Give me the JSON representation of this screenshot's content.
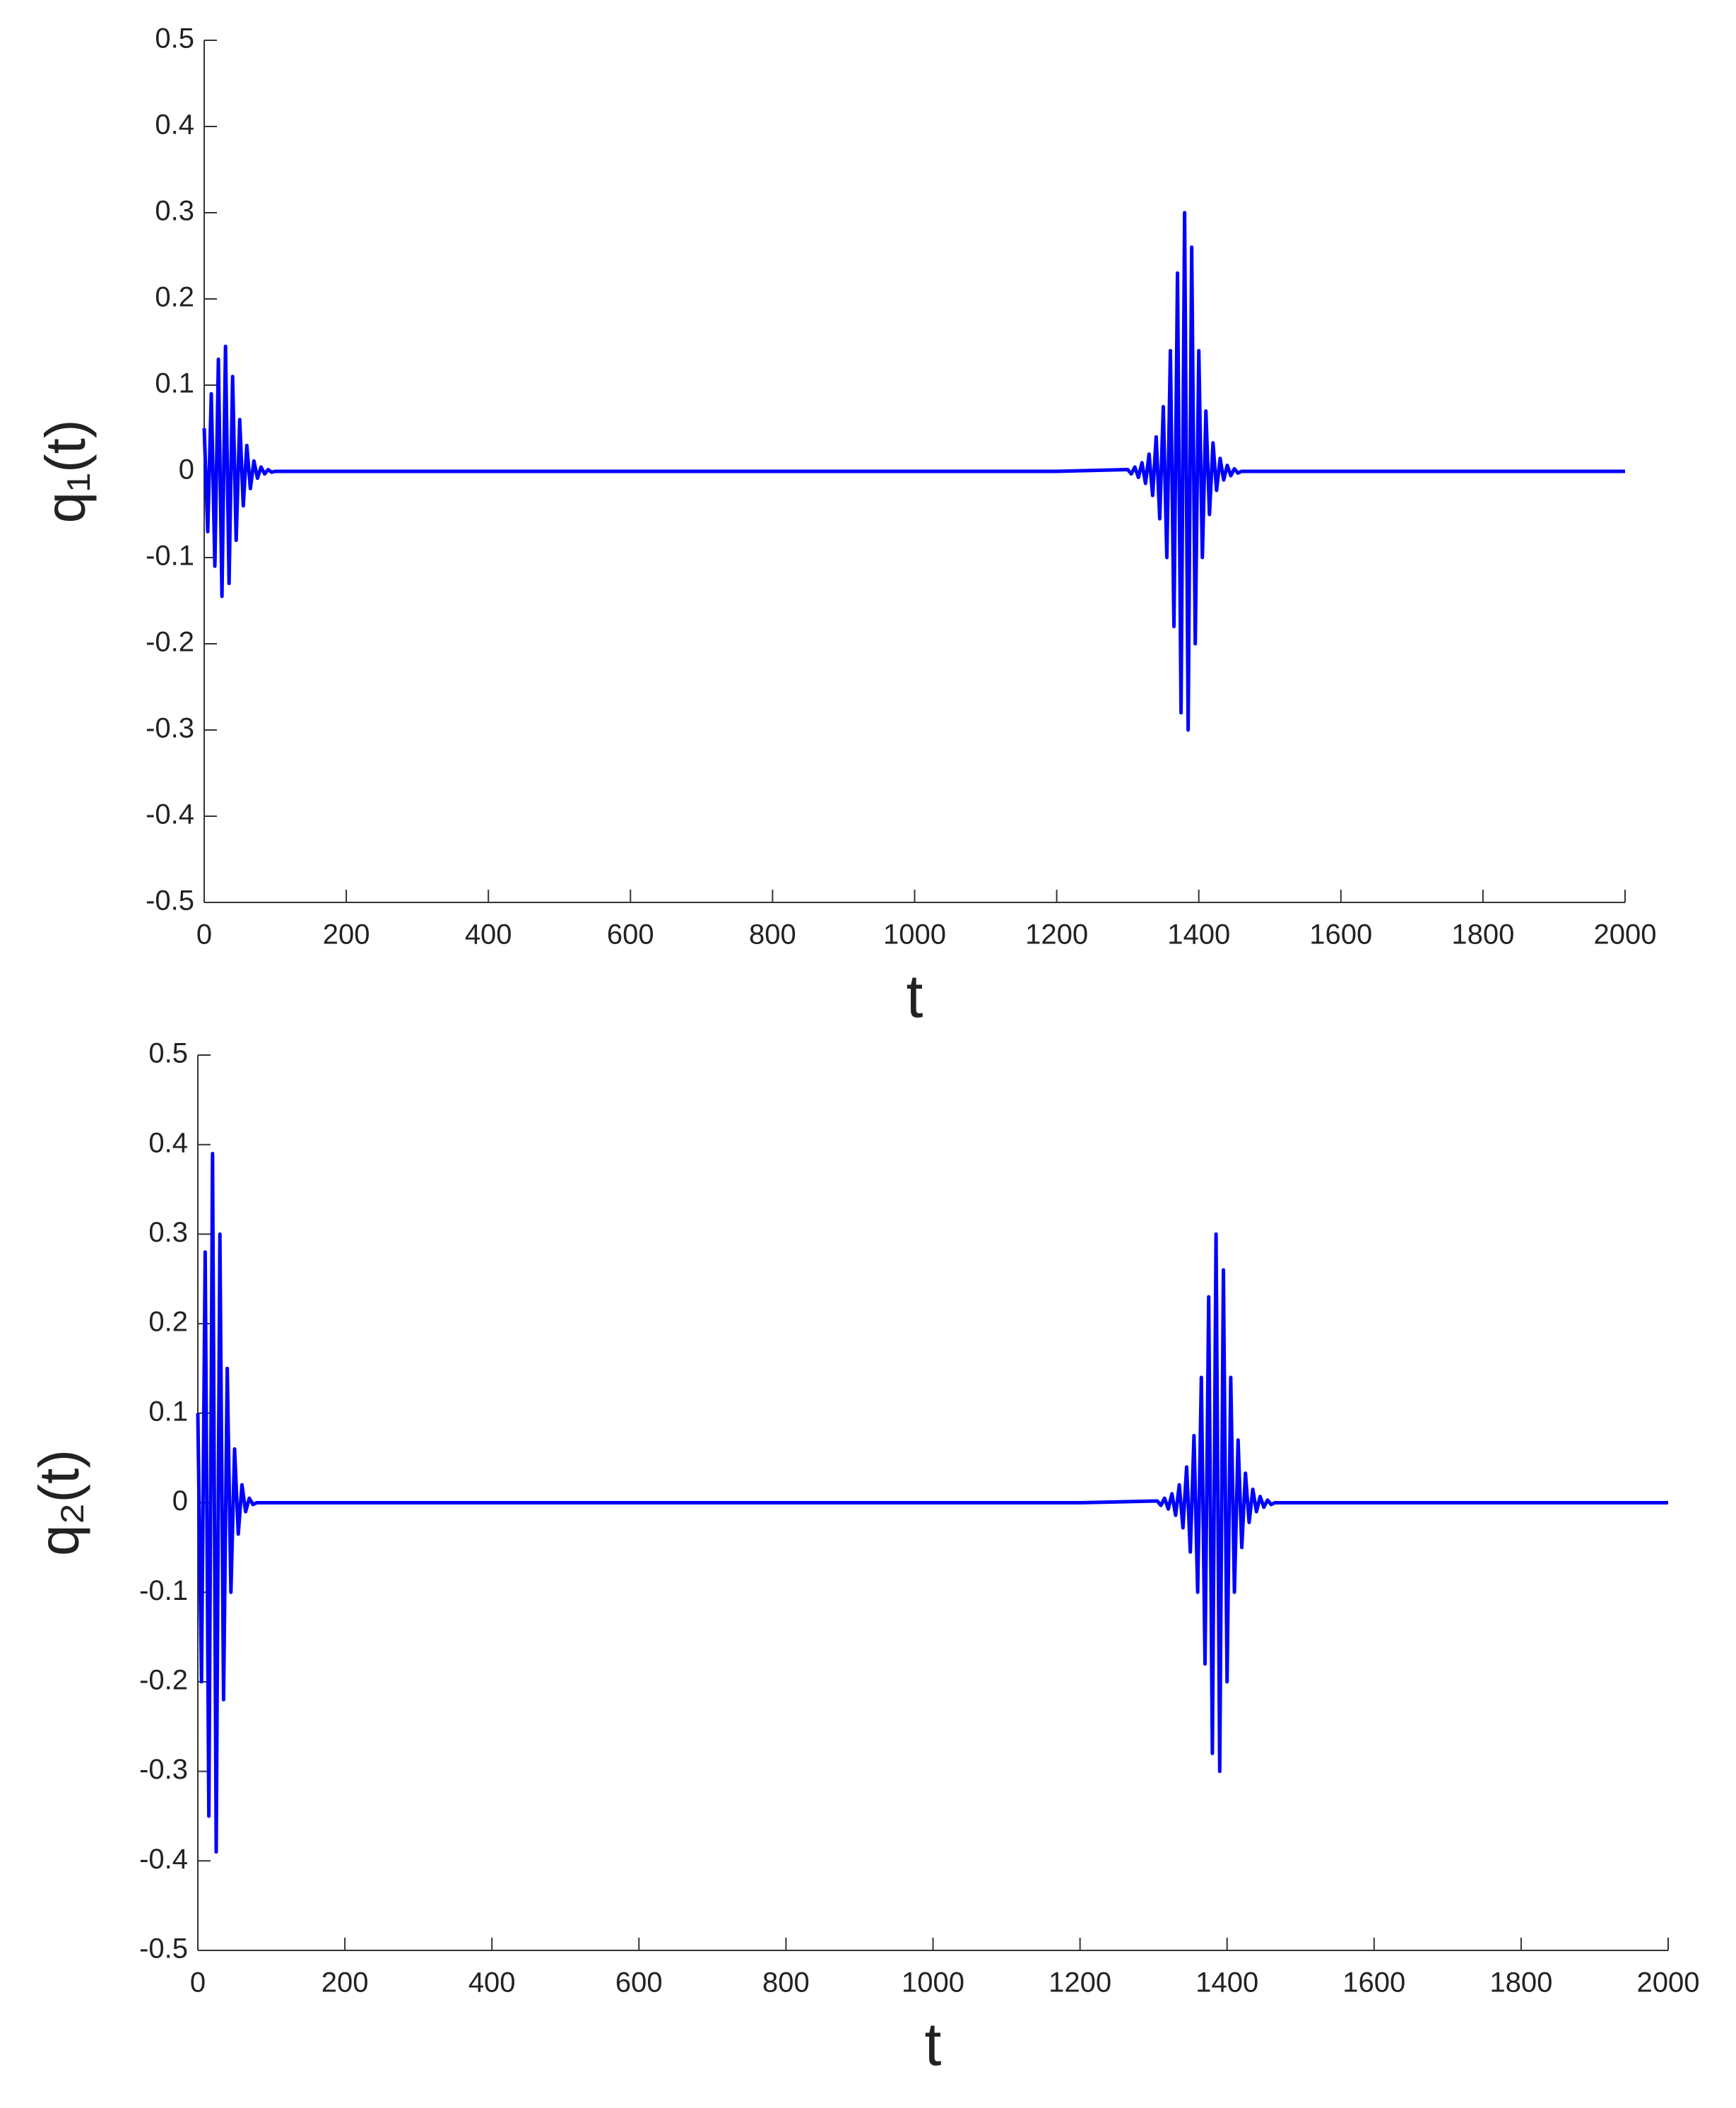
{
  "chart_data": [
    {
      "type": "line",
      "xlabel": "t",
      "ylabel": "q₁(t)",
      "xlim": [
        0,
        2000
      ],
      "ylim": [
        -0.5,
        0.5
      ],
      "xticks": [
        0,
        200,
        400,
        600,
        800,
        1000,
        1200,
        1400,
        1600,
        1800,
        2000
      ],
      "yticks": [
        -0.5,
        -0.4,
        -0.3,
        -0.2,
        -0.1,
        0,
        0.1,
        0.2,
        0.3,
        0.4,
        0.5
      ],
      "series": [
        {
          "color": "#0000ff",
          "x": [
            0,
            5,
            10,
            15,
            20,
            25,
            30,
            35,
            40,
            45,
            50,
            55,
            60,
            65,
            70,
            75,
            80,
            85,
            90,
            95,
            100,
            200,
            400,
            600,
            800,
            1000,
            1200,
            1300,
            1305,
            1310,
            1315,
            1320,
            1325,
            1330,
            1335,
            1340,
            1345,
            1350,
            1355,
            1360,
            1365,
            1370,
            1375,
            1380,
            1385,
            1390,
            1395,
            1400,
            1405,
            1410,
            1415,
            1420,
            1425,
            1430,
            1435,
            1440,
            1445,
            1450,
            1455,
            1460,
            1600,
            1800,
            2000
          ],
          "values": [
            0.05,
            -0.07,
            0.09,
            -0.11,
            0.13,
            -0.145,
            0.145,
            -0.13,
            0.11,
            -0.08,
            0.06,
            -0.04,
            0.03,
            -0.02,
            0.012,
            -0.008,
            0.005,
            -0.003,
            0.002,
            -0.001,
            0,
            0,
            0,
            0,
            0,
            0,
            0,
            0.002,
            -0.003,
            0.005,
            -0.007,
            0.01,
            -0.014,
            0.02,
            -0.028,
            0.04,
            -0.055,
            0.075,
            -0.1,
            0.14,
            -0.18,
            0.23,
            -0.28,
            0.3,
            -0.3,
            0.26,
            -0.2,
            0.14,
            -0.1,
            0.07,
            -0.05,
            0.033,
            -0.022,
            0.015,
            -0.01,
            0.007,
            -0.005,
            0.003,
            -0.002,
            0,
            0,
            0,
            0
          ]
        }
      ]
    },
    {
      "type": "line",
      "xlabel": "t",
      "ylabel": "q₂(t)",
      "xlim": [
        0,
        2000
      ],
      "ylim": [
        -0.5,
        0.5
      ],
      "xticks": [
        0,
        200,
        400,
        600,
        800,
        1000,
        1200,
        1400,
        1600,
        1800,
        2000
      ],
      "yticks": [
        -0.5,
        -0.4,
        -0.3,
        -0.2,
        -0.1,
        0,
        0.1,
        0.2,
        0.3,
        0.4,
        0.5
      ],
      "series": [
        {
          "color": "#0000ff",
          "x": [
            0,
            5,
            10,
            15,
            20,
            25,
            30,
            35,
            40,
            45,
            50,
            55,
            60,
            65,
            70,
            75,
            80,
            200,
            400,
            600,
            800,
            1000,
            1200,
            1305,
            1310,
            1315,
            1320,
            1325,
            1330,
            1335,
            1340,
            1345,
            1350,
            1355,
            1360,
            1365,
            1370,
            1375,
            1380,
            1385,
            1390,
            1395,
            1400,
            1405,
            1410,
            1415,
            1420,
            1425,
            1430,
            1435,
            1440,
            1445,
            1450,
            1455,
            1460,
            1465,
            1600,
            1800,
            2000
          ],
          "values": [
            0.1,
            -0.2,
            0.28,
            -0.35,
            0.39,
            -0.39,
            0.3,
            -0.22,
            0.15,
            -0.1,
            0.06,
            -0.035,
            0.02,
            -0.01,
            0.005,
            -0.002,
            0,
            0,
            0,
            0,
            0,
            0,
            0,
            0.002,
            -0.003,
            0.005,
            -0.007,
            0.01,
            -0.014,
            0.02,
            -0.028,
            0.04,
            -0.055,
            0.075,
            -0.1,
            0.14,
            -0.18,
            0.23,
            -0.28,
            0.3,
            -0.3,
            0.26,
            -0.2,
            0.14,
            -0.1,
            0.07,
            -0.05,
            0.033,
            -0.022,
            0.015,
            -0.01,
            0.007,
            -0.005,
            0.003,
            -0.002,
            0,
            0,
            0,
            0
          ]
        }
      ]
    }
  ]
}
